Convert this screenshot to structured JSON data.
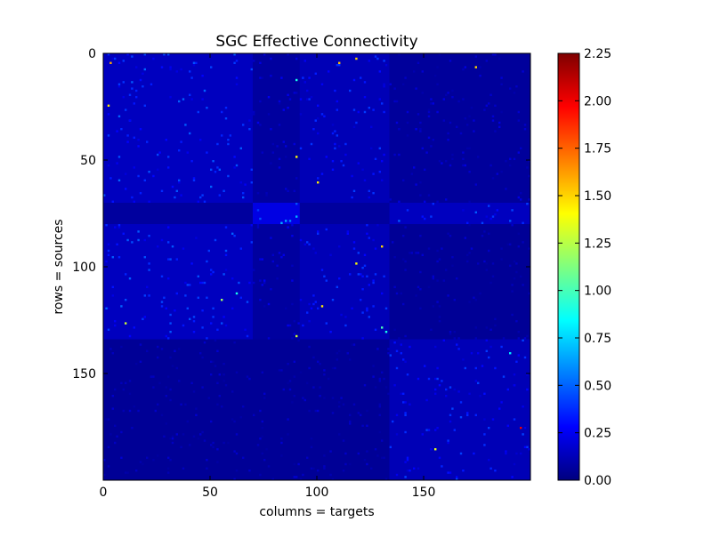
{
  "chart_data": {
    "type": "heatmap",
    "title": "SGC Effective Connectivity",
    "xlabel": "columns = targets",
    "ylabel": "rows = sources",
    "n_rows": 200,
    "n_cols": 200,
    "x_ticks": [
      0,
      50,
      100,
      150
    ],
    "y_ticks": [
      0,
      50,
      100,
      150
    ],
    "colorbar": {
      "vmin": 0.0,
      "vmax": 2.25,
      "ticks": [
        "0.00",
        "0.25",
        "0.50",
        "0.75",
        "1.00",
        "1.25",
        "1.50",
        "1.75",
        "2.00",
        "2.25"
      ],
      "colormap": "jet",
      "colormap_stops": [
        "#00007f",
        "#0000ff",
        "#007fff",
        "#00ffff",
        "#7fff7f",
        "#ffff00",
        "#ff7f00",
        "#ff0000",
        "#7f0000"
      ]
    },
    "block_structure": [
      {
        "rows": [
          0,
          70
        ],
        "cols": [
          0,
          70
        ],
        "level": 0.14
      },
      {
        "rows": [
          0,
          70
        ],
        "cols": [
          70,
          92
        ],
        "level": 0.07
      },
      {
        "rows": [
          0,
          70
        ],
        "cols": [
          92,
          134
        ],
        "level": 0.12
      },
      {
        "rows": [
          0,
          70
        ],
        "cols": [
          134,
          200
        ],
        "level": 0.06
      },
      {
        "rows": [
          70,
          80
        ],
        "cols": [
          70,
          92
        ],
        "level": 0.22
      },
      {
        "rows": [
          70,
          80
        ],
        "cols": [
          134,
          200
        ],
        "level": 0.14
      },
      {
        "rows": [
          80,
          134
        ],
        "cols": [
          0,
          70
        ],
        "level": 0.14
      },
      {
        "rows": [
          80,
          134
        ],
        "cols": [
          70,
          92
        ],
        "level": 0.07
      },
      {
        "rows": [
          80,
          134
        ],
        "cols": [
          92,
          134
        ],
        "level": 0.12
      },
      {
        "rows": [
          80,
          134
        ],
        "cols": [
          134,
          200
        ],
        "level": 0.05
      },
      {
        "rows": [
          134,
          200
        ],
        "cols": [
          0,
          134
        ],
        "level": 0.05
      },
      {
        "rows": [
          134,
          200
        ],
        "cols": [
          134,
          200
        ],
        "level": 0.12
      }
    ],
    "bright_cells": [
      {
        "row": 4,
        "col": 3,
        "value": 1.6
      },
      {
        "row": 4,
        "col": 110,
        "value": 1.55
      },
      {
        "row": 2,
        "col": 118,
        "value": 1.5
      },
      {
        "row": 6,
        "col": 174,
        "value": 1.5
      },
      {
        "row": 12,
        "col": 90,
        "value": 0.9
      },
      {
        "row": 24,
        "col": 2,
        "value": 1.45
      },
      {
        "row": 48,
        "col": 90,
        "value": 1.4
      },
      {
        "row": 60,
        "col": 100,
        "value": 1.45
      },
      {
        "row": 90,
        "col": 130,
        "value": 1.5
      },
      {
        "row": 98,
        "col": 118,
        "value": 1.4
      },
      {
        "row": 118,
        "col": 102,
        "value": 1.45
      },
      {
        "row": 132,
        "col": 90,
        "value": 1.3
      },
      {
        "row": 128,
        "col": 130,
        "value": 1.0
      },
      {
        "row": 130,
        "col": 132,
        "value": 0.9
      },
      {
        "row": 126,
        "col": 10,
        "value": 1.3
      },
      {
        "row": 115,
        "col": 55,
        "value": 1.2
      },
      {
        "row": 112,
        "col": 62,
        "value": 0.9
      },
      {
        "row": 175,
        "col": 195,
        "value": 2.0
      },
      {
        "row": 185,
        "col": 155,
        "value": 1.35
      },
      {
        "row": 140,
        "col": 190,
        "value": 0.8
      }
    ],
    "grid": false,
    "legend": "none"
  }
}
